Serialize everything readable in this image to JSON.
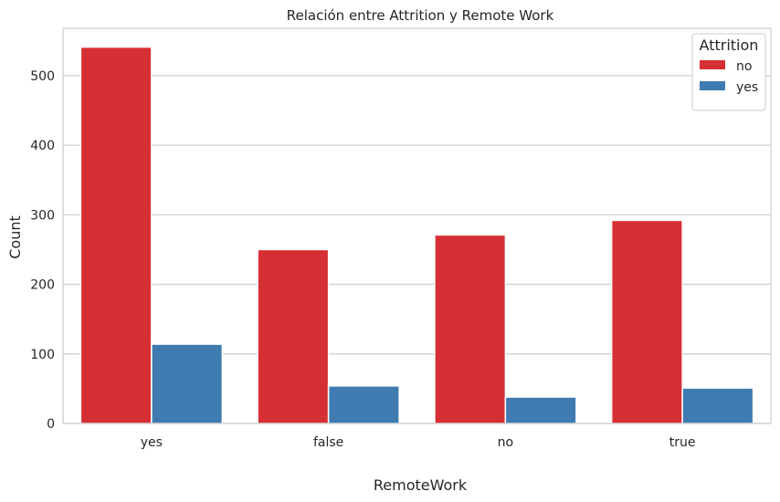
{
  "chart_data": {
    "type": "bar",
    "title": "Relación entre Attrition y Remote Work",
    "xlabel": "RemoteWork",
    "ylabel": "Count",
    "categories": [
      "yes",
      "false",
      "no",
      "true"
    ],
    "series": [
      {
        "name": "no",
        "color": "#d62f33",
        "values": [
          541,
          250,
          271,
          292
        ]
      },
      {
        "name": "yes",
        "color": "#3f7bb0",
        "values": [
          114,
          54,
          38,
          51
        ]
      }
    ],
    "ylim": [
      0,
      568
    ],
    "yticks": [
      0,
      100,
      200,
      300,
      400,
      500
    ],
    "grid": true,
    "legend": {
      "title": "Attrition",
      "position": "top-right"
    }
  }
}
